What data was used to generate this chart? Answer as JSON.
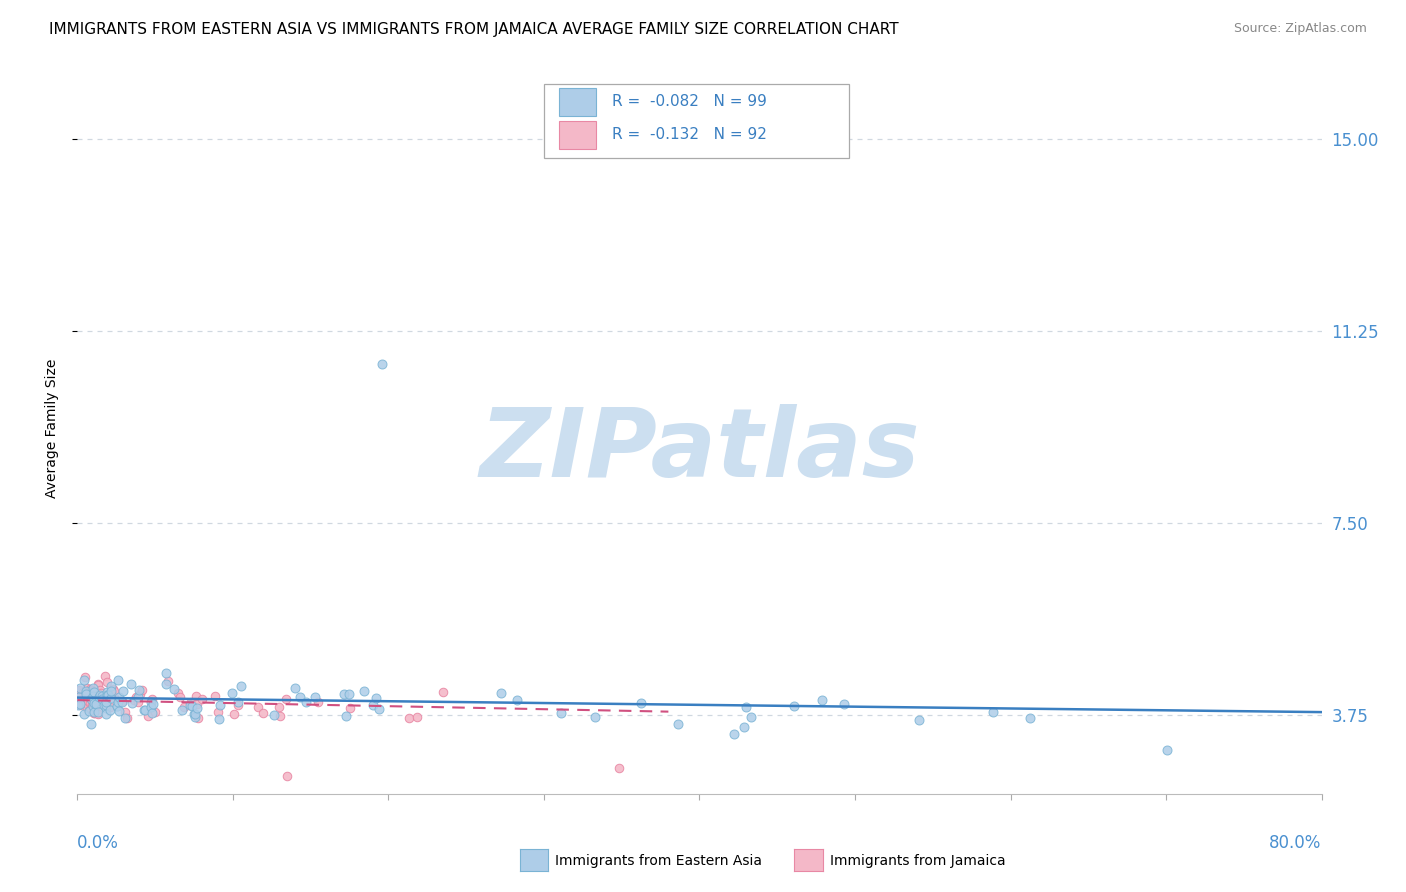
{
  "title": "IMMIGRANTS FROM EASTERN ASIA VS IMMIGRANTS FROM JAMAICA AVERAGE FAMILY SIZE CORRELATION CHART",
  "source": "Source: ZipAtlas.com",
  "ylabel": "Average Family Size",
  "yticks": [
    3.75,
    7.5,
    11.25,
    15.0
  ],
  "ylim": [
    2.2,
    16.5
  ],
  "xlim": [
    0.0,
    0.8
  ],
  "xticks": [
    0.0,
    0.1,
    0.2,
    0.3,
    0.4,
    0.5,
    0.6,
    0.7,
    0.8
  ],
  "series1_name": "Immigrants from Eastern Asia",
  "series1_R": "-0.082",
  "series1_N": "99",
  "series1_fill": "#aecde8",
  "series1_edge": "#7ab3d4",
  "series2_name": "Immigrants from Jamaica",
  "series2_R": "-0.132",
  "series2_N": "92",
  "series2_fill": "#f4b8c8",
  "series2_edge": "#e888a4",
  "trend1_color": "#3a7fc1",
  "trend2_color": "#d05080",
  "background_color": "#ffffff",
  "watermark": "ZIPatlas",
  "watermark_color": "#ccdff0",
  "title_fontsize": 11,
  "source_fontsize": 9,
  "axis_label_fontsize": 10,
  "tick_fontsize": 12,
  "legend_fontsize": 11,
  "grid_color": "#d0d8e0",
  "right_tick_color": "#4a90d0",
  "legend_text_color": "#3a7fc1"
}
